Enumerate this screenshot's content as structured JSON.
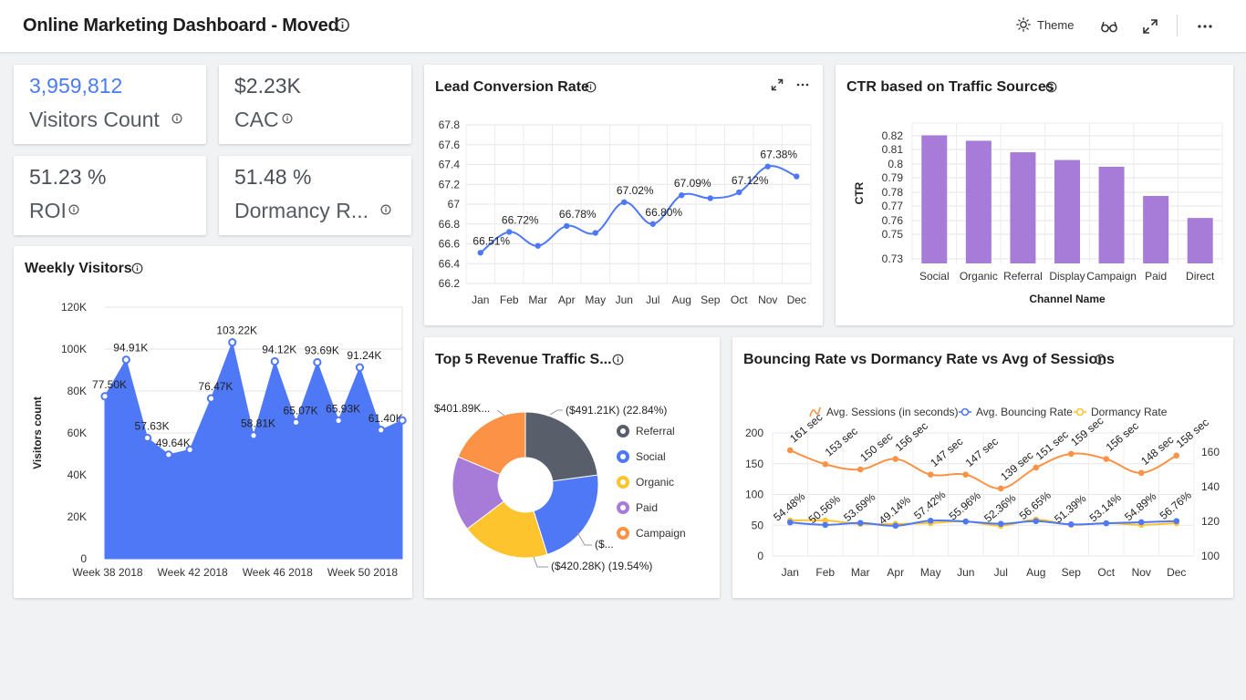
{
  "app": {
    "title": "Online Marketing Dashboard - Moved",
    "theme_label": "Theme"
  },
  "icons": [
    "info-icon",
    "sun-icon",
    "glasses-icon",
    "expand-icon",
    "more-icon"
  ],
  "kpis": [
    {
      "value": "3,959,812",
      "label": "Visitors Count",
      "accent": "#4a7cf0"
    },
    {
      "value": "$2.23K",
      "label": "CAC"
    },
    {
      "value": "51.23 %",
      "label": "ROI"
    },
    {
      "value": "51.48 %",
      "label": "Dormancy R..."
    }
  ],
  "weekly": {
    "title": "Weekly Visitors",
    "chart_data": {
      "type": "area",
      "ylabel": "Visitors count",
      "y_ticks": [
        "0",
        "20K",
        "40K",
        "60K",
        "80K",
        "100K",
        "120K"
      ],
      "ylim": [
        0,
        120000
      ],
      "x_tick_labels": [
        "Week 38 2018",
        "Week 42 2018",
        "Week 46 2018",
        "Week 50 2018"
      ],
      "values": [
        77500,
        94910,
        57630,
        49640,
        52000,
        76470,
        103220,
        58810,
        94120,
        65070,
        93690,
        65930,
        91240,
        61400,
        66000
      ],
      "labels": [
        "77.50K",
        "94.91K",
        "57.63K",
        "49.64K",
        "",
        "76.47K",
        "103.22K",
        "58.81K",
        "94.12K",
        "65.07K",
        "93.69K",
        "65.93K",
        "91.24K",
        "61.40K",
        ""
      ],
      "color": "#4f78f7"
    }
  },
  "lead": {
    "title": "Lead Conversion Rate",
    "chart_data": {
      "type": "line",
      "categories": [
        "Jan",
        "Feb",
        "Mar",
        "Apr",
        "May",
        "Jun",
        "Jul",
        "Aug",
        "Sep",
        "Oct",
        "Nov",
        "Dec"
      ],
      "values": [
        66.51,
        66.72,
        66.58,
        66.78,
        66.71,
        67.02,
        66.8,
        67.09,
        67.06,
        67.12,
        67.38,
        67.28
      ],
      "labels": [
        "66.51%",
        "66.72%",
        "",
        "66.78%",
        "",
        "67.02%",
        "66.80%",
        "67.09%",
        "",
        "67.12%",
        "67.38%",
        ""
      ],
      "y_ticks": [
        "66.2",
        "66.4",
        "66.6",
        "66.8",
        "67",
        "67.2",
        "67.4",
        "67.6",
        "67.8"
      ],
      "ylim": [
        66.2,
        67.8
      ],
      "color": "#4f78f7"
    }
  },
  "ctr": {
    "title": "CTR based on Traffic Sources",
    "chart_data": {
      "type": "bar",
      "categories": [
        "Social",
        "Organic",
        "Referral",
        "Display",
        "Campaign",
        "Paid",
        "Direct"
      ],
      "values": [
        0.8205,
        0.8166,
        0.8084,
        0.8029,
        0.7981,
        0.7773,
        0.7616
      ],
      "y_ticks": [
        "0.73",
        "0.75",
        "0.76",
        "0.77",
        "0.78",
        "0.79",
        "0.8",
        "0.81",
        "0.82"
      ],
      "ylim": [
        0.73,
        0.83
      ],
      "xlabel": "Channel Name",
      "ylabel": "CTR",
      "color": "#a77bd8"
    }
  },
  "revenue": {
    "title": "Top 5 Revenue Traffic S...",
    "chart_data": {
      "type": "pie",
      "slices": [
        {
          "name": "Referral",
          "value": 491.21,
          "label": "($491.21K) (22.84%)",
          "color": "#585f6b"
        },
        {
          "name": "Social",
          "value": 480.0,
          "label": "($...",
          "color": "#4f78f7"
        },
        {
          "name": "Organic",
          "value": 420.28,
          "label": "($420.28K) (19.54%)",
          "color": "#fdc42e"
        },
        {
          "name": "Paid",
          "value": 358.0,
          "label": "",
          "color": "#a77bd8"
        },
        {
          "name": "Campaign",
          "value": 401.89,
          "label": "$401.89K...",
          "color": "#fb9245"
        }
      ]
    }
  },
  "bounce": {
    "title": "Bouncing Rate vs Dormancy Rate vs Avg of Sessions",
    "chart_data": {
      "type": "line",
      "categories": [
        "Jan",
        "Feb",
        "Mar",
        "Apr",
        "May",
        "Jun",
        "Jul",
        "Aug",
        "Sep",
        "Oct",
        "Nov",
        "Dec"
      ],
      "left_ticks": [
        "0",
        "50",
        "100",
        "150",
        "200"
      ],
      "right_ticks": [
        "100",
        "120",
        "140",
        "160"
      ],
      "series": [
        {
          "name": "Avg. Sessions (in seconds)",
          "color": "#fb9245",
          "values": [
            161,
            153,
            150,
            156,
            147,
            147,
            139,
            151,
            159,
            156,
            148,
            158
          ],
          "labels": [
            "161 sec",
            "153 sec",
            "150 sec",
            "156 sec",
            "147 sec",
            "147 sec",
            "139 sec",
            "151 sec",
            "159 sec",
            "156 sec",
            "148 sec",
            "158 sec"
          ]
        },
        {
          "name": "Avg. Bouncing Rate",
          "color": "#4f78f7",
          "values": [
            54.48,
            50.56,
            53.69,
            49.14,
            57.42,
            55.96,
            52.36,
            56.65,
            51.39,
            53.14,
            54.89,
            56.76
          ],
          "labels": [
            "54.48%",
            "50.56%",
            "53.69%",
            "49.14%",
            "57.42%",
            "55.96%",
            "52.36%",
            "56.65%",
            "51.39%",
            "53.14%",
            "54.89%",
            "56.76%"
          ]
        },
        {
          "name": "Dormancy Rate",
          "color": "#fdc42e",
          "values": [
            120.5,
            120.5,
            118.5,
            118.5,
            119,
            120,
            117.5,
            121,
            118,
            119,
            118,
            119
          ]
        }
      ]
    }
  }
}
